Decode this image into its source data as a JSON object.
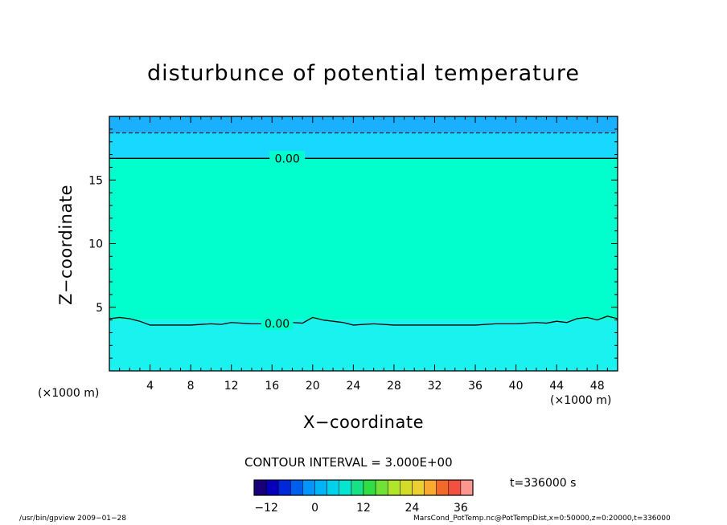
{
  "chart_data": {
    "type": "heatmap",
    "title": "disturbunce of potential temperature",
    "xlabel": "X−coordinate",
    "ylabel": "Z−coordinate",
    "x_unit": "(×1000 m)",
    "xlim": [
      0,
      50
    ],
    "ylim": [
      0,
      20
    ],
    "x_ticks": [
      4,
      8,
      12,
      16,
      20,
      24,
      28,
      32,
      36,
      40,
      44,
      48
    ],
    "y_ticks": [
      5,
      10,
      15
    ],
    "bands": [
      {
        "z_from": 18.7,
        "z_to": 20.0,
        "color": "#1ab0ff"
      },
      {
        "z_from": 16.7,
        "z_to": 18.7,
        "color": "#19d8ff"
      },
      {
        "z_from": 4.0,
        "z_to": 16.7,
        "color": "#00ffcc"
      },
      {
        "z_from": 0.0,
        "z_to": 4.0,
        "color": "#19f2ee"
      }
    ],
    "contours": [
      {
        "label": "0.00",
        "style": "solid",
        "z": 16.7,
        "label_x": 17.5
      },
      {
        "label": "0.00",
        "style": "solid",
        "label_x": 16.5,
        "x": [
          0,
          1,
          2,
          3,
          4,
          6,
          8,
          10,
          11,
          12,
          14,
          15,
          16,
          18,
          19,
          20,
          21,
          22,
          23,
          24,
          26,
          28,
          30,
          32,
          34,
          36,
          38,
          40,
          42,
          43,
          44,
          45,
          46,
          47,
          48,
          49,
          50
        ],
        "z": [
          4.1,
          4.2,
          4.1,
          3.9,
          3.6,
          3.6,
          3.6,
          3.7,
          3.65,
          3.8,
          3.7,
          3.7,
          3.7,
          3.8,
          3.75,
          4.2,
          4.0,
          3.9,
          3.8,
          3.6,
          3.7,
          3.6,
          3.6,
          3.6,
          3.6,
          3.6,
          3.7,
          3.7,
          3.8,
          3.75,
          3.9,
          3.8,
          4.1,
          4.2,
          4.0,
          4.3,
          4.1
        ]
      },
      {
        "label": "",
        "style": "dashed",
        "z": 18.7
      }
    ],
    "color_scale": {
      "min": -15,
      "max": 39,
      "step": 3,
      "ticks": [
        "−12",
        "0",
        "12",
        "24",
        "36"
      ],
      "tick_values": [
        -12,
        0,
        12,
        24,
        36
      ]
    }
  },
  "labels": {
    "contour_interval": "CONTOUR INTERVAL = 3.000E+00",
    "time": "t=336000 s",
    "footer_left": "/usr/bin/gpview   2009−01−28",
    "footer_right": "MarsCond_PotTemp.nc@PotTempDist,x=0:50000,z=0:20000,t=336000"
  },
  "colors": {
    "frame": "#000000"
  }
}
